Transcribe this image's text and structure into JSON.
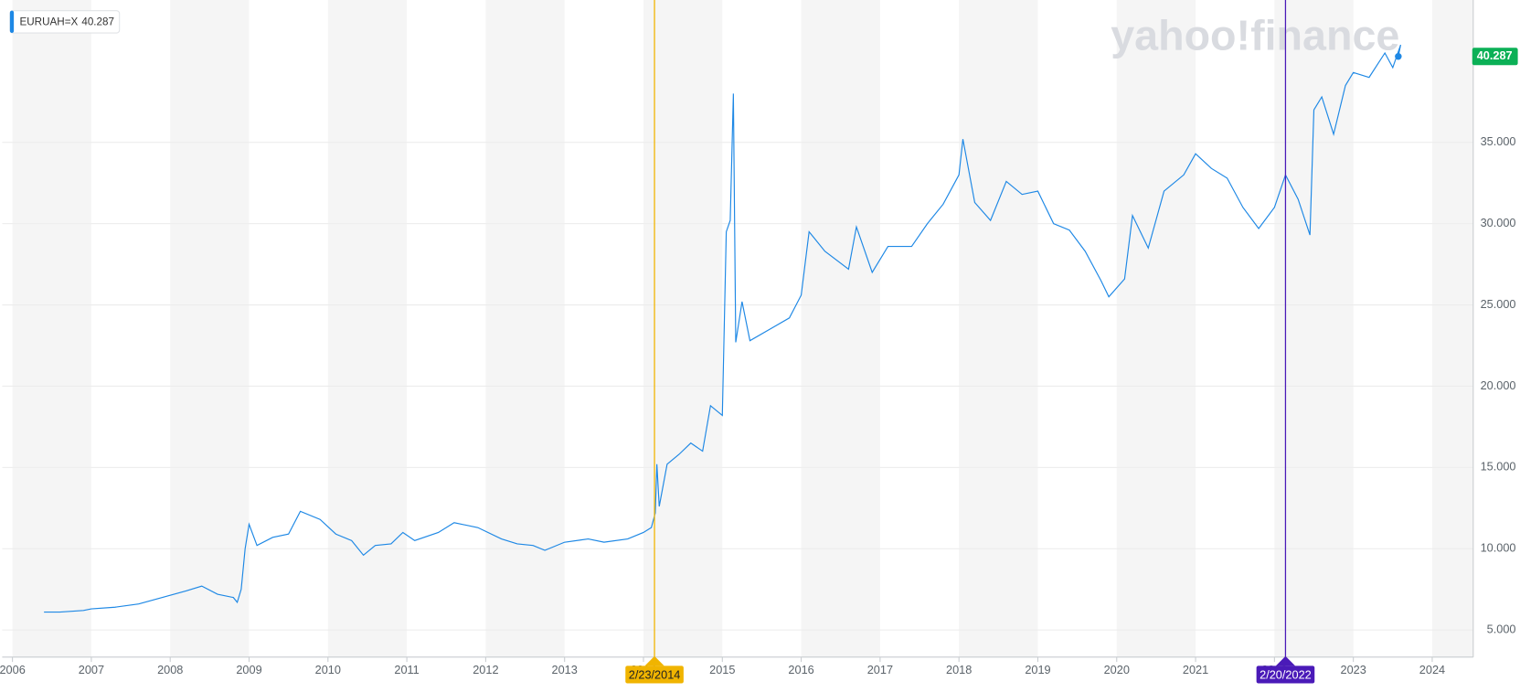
{
  "chart_data": {
    "type": "line",
    "watermark": "yahoo!finance",
    "last_value": 40.287,
    "x": [
      2006.4,
      2006.6,
      2006.9,
      2007.0,
      2007.3,
      2007.6,
      2007.9,
      2008.2,
      2008.4,
      2008.6,
      2008.8,
      2008.85,
      2008.9,
      2008.95,
      2009.0,
      2009.1,
      2009.3,
      2009.5,
      2009.65,
      2009.9,
      2010.1,
      2010.3,
      2010.45,
      2010.6,
      2010.8,
      2010.95,
      2011.1,
      2011.4,
      2011.6,
      2011.9,
      2012.2,
      2012.4,
      2012.6,
      2012.75,
      2013.0,
      2013.3,
      2013.5,
      2013.8,
      2014.0,
      2014.1,
      2014.15,
      2014.17,
      2014.2,
      2014.3,
      2014.45,
      2014.6,
      2014.75,
      2014.85,
      2015.0,
      2015.05,
      2015.1,
      2015.14,
      2015.17,
      2015.25,
      2015.35,
      2015.6,
      2015.85,
      2016.0,
      2016.1,
      2016.3,
      2016.6,
      2016.7,
      2016.9,
      2017.1,
      2017.4,
      2017.6,
      2017.8,
      2018.0,
      2018.05,
      2018.2,
      2018.4,
      2018.6,
      2018.8,
      2019.0,
      2019.2,
      2019.4,
      2019.6,
      2019.8,
      2019.9,
      2020.1,
      2020.2,
      2020.4,
      2020.6,
      2020.85,
      2021.0,
      2021.2,
      2021.4,
      2021.6,
      2021.8,
      2022.0,
      2022.14,
      2022.3,
      2022.45,
      2022.5,
      2022.6,
      2022.75,
      2022.9,
      2023.0,
      2023.2,
      2023.4,
      2023.5,
      2023.6,
      2023.57
    ],
    "series": [
      {
        "name": "EURUAH=X",
        "color": "#1e88e5",
        "values": [
          6.1,
          6.1,
          6.2,
          6.3,
          6.4,
          6.6,
          7.0,
          7.4,
          7.7,
          7.2,
          7.0,
          6.7,
          7.5,
          10.0,
          11.5,
          10.2,
          10.7,
          10.9,
          12.3,
          11.8,
          10.9,
          10.5,
          9.6,
          10.2,
          10.3,
          11.0,
          10.5,
          11.0,
          11.6,
          11.3,
          10.6,
          10.3,
          10.2,
          9.9,
          10.4,
          10.6,
          10.4,
          10.6,
          11.0,
          11.3,
          12.2,
          15.2,
          12.6,
          15.2,
          15.8,
          16.5,
          16.0,
          18.8,
          18.2,
          29.5,
          30.2,
          38.0,
          22.7,
          25.2,
          22.8,
          23.5,
          24.2,
          25.6,
          29.5,
          28.3,
          27.2,
          29.8,
          27.0,
          28.6,
          28.6,
          30.0,
          31.2,
          33.0,
          35.2,
          31.3,
          30.2,
          32.6,
          31.8,
          32.0,
          30.0,
          29.6,
          28.3,
          26.5,
          25.5,
          26.6,
          30.5,
          28.5,
          32.0,
          33.0,
          34.3,
          33.4,
          32.8,
          31.0,
          29.7,
          31.0,
          33.0,
          31.5,
          29.3,
          37.0,
          37.8,
          35.5,
          38.5,
          39.3,
          39.0,
          40.5,
          39.6,
          41.0,
          40.287
        ]
      }
    ],
    "events": [
      {
        "x": 2014.14,
        "label": "2/23/2014",
        "color": "#f0b400"
      },
      {
        "x": 2022.14,
        "label": "2/20/2022",
        "color": "#4a1ab8"
      }
    ],
    "xlim": [
      2005.87,
      2024.52
    ],
    "xticks": [
      2006,
      2007,
      2008,
      2009,
      2010,
      2011,
      2012,
      2013,
      2014,
      2015,
      2016,
      2017,
      2018,
      2019,
      2020,
      2021,
      2022,
      2023,
      2024
    ],
    "ylim": [
      3.33,
      43.76
    ],
    "yticks": [
      {
        "value": 5,
        "label": "5.000"
      },
      {
        "value": 10,
        "label": "10.000"
      },
      {
        "value": 15,
        "label": "15.000"
      },
      {
        "value": 20,
        "label": "20.000"
      },
      {
        "value": 25,
        "label": "25.000"
      },
      {
        "value": 30,
        "label": "30.000"
      },
      {
        "value": 35,
        "label": "35.000"
      }
    ],
    "grid": true
  }
}
